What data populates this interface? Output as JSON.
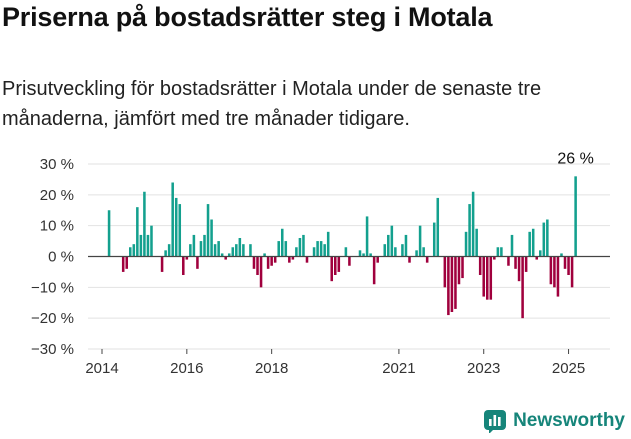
{
  "title": "Priserna på bostadsrätter steg i Motala",
  "subtitle": "Prisutveckling för bostadsrätter i Motala under de senaste tre månaderna, jämfört med tre månader tidigare.",
  "brand": {
    "name": "Newsworthy",
    "color": "#16857a"
  },
  "colors": {
    "positive": "#13a08e",
    "negative": "#a0003d",
    "grid": "#e2e2e2",
    "axis": "#444444"
  },
  "chart_data": {
    "type": "bar",
    "unit": "%",
    "ylim": [
      -30,
      30
    ],
    "y_ticks": [
      30,
      20,
      10,
      0,
      -10,
      -20,
      -30
    ],
    "y_tick_labels": [
      "30 %",
      "20 %",
      "10 %",
      "0 %",
      "−10 %",
      "−20 %",
      "−30 %"
    ],
    "x_ticks": [
      2014,
      2016,
      2018,
      2021,
      2023,
      2025
    ],
    "x_tick_labels": [
      "2014",
      "2016",
      "2018",
      "2021",
      "2023",
      "2025"
    ],
    "x_range": [
      2014.0,
      2025.6
    ],
    "grid": true,
    "annotation": {
      "text": "26 %"
    },
    "start": [
      2014,
      3
    ],
    "values": [
      15,
      0,
      0,
      0,
      -5,
      -4,
      3,
      4,
      16,
      7,
      21,
      7,
      10,
      0,
      0,
      -5,
      2,
      4,
      24,
      19,
      17,
      -6,
      -1,
      4,
      7,
      -4,
      5,
      7,
      17,
      12,
      4,
      5,
      1,
      -1,
      1,
      3,
      4,
      6,
      4,
      0,
      4,
      -4,
      -6,
      -10,
      1,
      -4,
      -3,
      -2,
      5,
      9,
      5,
      -2,
      -1,
      3,
      6,
      7,
      -2,
      0,
      3,
      5,
      5,
      4,
      8,
      -8,
      -6,
      -5,
      0,
      3,
      -3,
      0,
      0,
      2,
      1,
      13,
      1,
      -9,
      -2,
      0,
      4,
      7,
      10,
      3,
      0,
      4,
      7,
      -2,
      0,
      2,
      10,
      3,
      -2,
      0,
      11,
      19,
      0,
      -10,
      -19,
      -18,
      -17,
      -9,
      -7,
      8,
      17,
      21,
      9,
      -6,
      -13,
      -14,
      -14,
      -1,
      3,
      3,
      0,
      -3,
      7,
      -4,
      -8,
      -20,
      -5,
      8,
      9,
      -1,
      2,
      11,
      12,
      -9,
      -10,
      -13,
      1,
      -4,
      -6,
      -10,
      26
    ]
  }
}
